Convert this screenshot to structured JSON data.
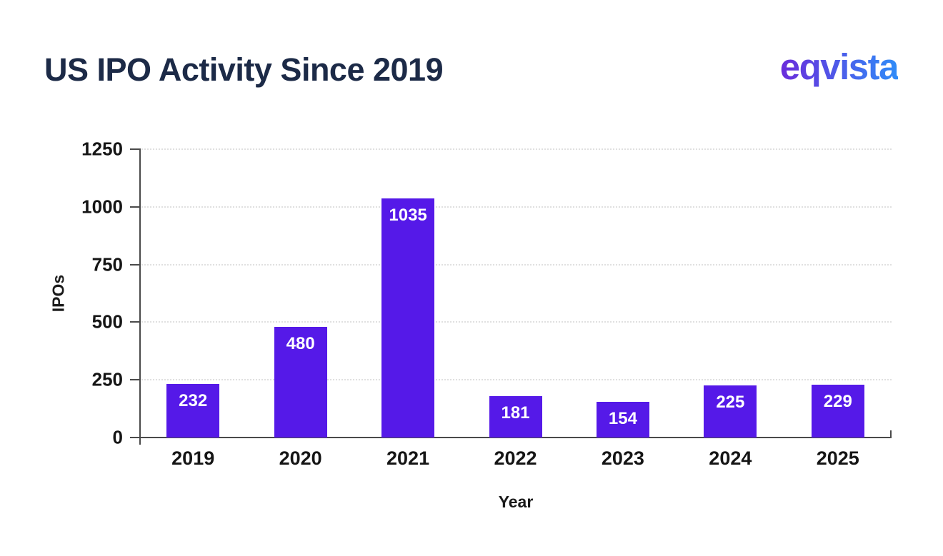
{
  "header": {
    "title": "US IPO Activity Since 2019",
    "logo_text": "eqvista"
  },
  "colors": {
    "title_color": "#1C2A47",
    "bar_color": "#5519E8",
    "value_label_color": "#FFFFFF",
    "logo_gradient_start": "#6A2BDB",
    "logo_gradient_end": "#2F8CF8",
    "axis_color": "#4A4A4A",
    "gridline_color": "#E0E0E0"
  },
  "chart_data": {
    "type": "bar",
    "title": "US IPO Activity Since 2019",
    "categories": [
      "2019",
      "2020",
      "2021",
      "2022",
      "2023",
      "2024",
      "2025"
    ],
    "values": [
      232,
      480,
      1035,
      181,
      154,
      225,
      229
    ],
    "xlabel": "Year",
    "ylabel": "IPOs",
    "ylim": [
      0,
      1250
    ],
    "yticks": [
      0,
      250,
      500,
      750,
      1000,
      1250
    ],
    "grid": "horizontal-dotted",
    "legend_position": "none"
  }
}
